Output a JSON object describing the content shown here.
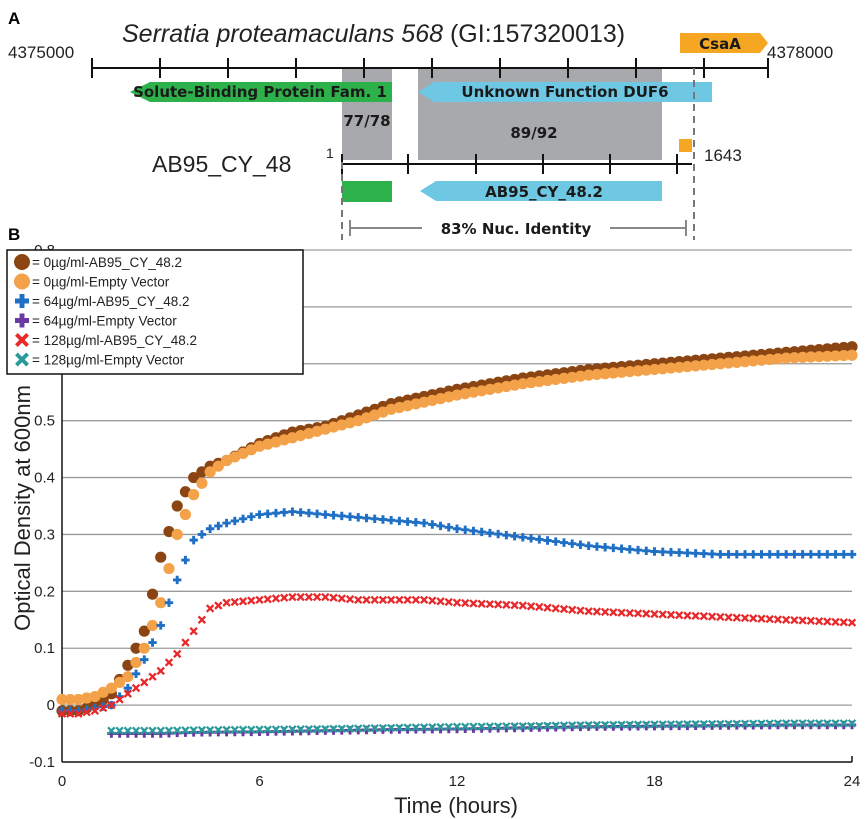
{
  "panel_a": {
    "letter": "A",
    "title_species": "Serratia proteamaculans 568",
    "title_gi": " (GI:157320013)",
    "ref_start": "4375000",
    "ref_end": "4378000",
    "csaA_label": "CsaA",
    "solute_label": "Solute-Binding Protein Fam. 1",
    "duf6_label": "Unknown Function DUF6",
    "identity_left": "77/78",
    "identity_right": "89/92",
    "clone_name": "AB95_CY_48",
    "clone_start": "1",
    "clone_end": "1643",
    "clone_gene_label": "AB95_CY_48.2",
    "nuc_identity": "83% Nuc. Identity",
    "colors": {
      "green": "#2db14a",
      "blue": "#6ec8e4",
      "orange": "#f5a623",
      "gray": "#a8a9ad"
    }
  },
  "panel_b": {
    "letter": "B"
  },
  "chart_data": {
    "type": "scatter",
    "xlabel": "Time (hours)",
    "ylabel": "Optical Density at 600nm",
    "xlim": [
      0,
      24
    ],
    "ylim": [
      -0.1,
      0.8
    ],
    "xticks": [
      0,
      6,
      12,
      18,
      24
    ],
    "yticks": [
      -0.1,
      0,
      0.1,
      0.2,
      0.3,
      0.4,
      0.5,
      0.6,
      0.7,
      0.8
    ],
    "ytick_labels": [
      "-0.1",
      "0",
      "0.1",
      "0.2",
      "0.3",
      "0.4",
      "0.5",
      "0.6",
      "0.7",
      "0.8"
    ],
    "grid": "horizontal",
    "legend_position": "top-left",
    "series": [
      {
        "name": "= 0µg/ml-AB95_CY_48.2",
        "marker": "circle",
        "color": "#8b4513",
        "x": [
          0,
          0.5,
          1,
          1.5,
          2,
          2.5,
          3,
          3.5,
          4,
          4.5,
          5,
          6,
          7,
          8,
          9,
          10,
          12,
          14,
          16,
          18,
          20,
          22,
          24
        ],
        "y": [
          -0.01,
          -0.01,
          0.0,
          0.02,
          0.07,
          0.13,
          0.26,
          0.35,
          0.4,
          0.42,
          0.43,
          0.46,
          0.48,
          0.49,
          0.51,
          0.53,
          0.555,
          0.575,
          0.59,
          0.6,
          0.61,
          0.62,
          0.63
        ]
      },
      {
        "name": "= 0µg/ml-Empty Vector",
        "marker": "circle",
        "color": "#f4a24a",
        "x": [
          0,
          0.5,
          1,
          1.5,
          2,
          2.5,
          3,
          3.5,
          4,
          4.5,
          5,
          6,
          7,
          8,
          9,
          10,
          12,
          14,
          16,
          18,
          20,
          22,
          24
        ],
        "y": [
          0.01,
          0.01,
          0.015,
          0.03,
          0.05,
          0.1,
          0.18,
          0.3,
          0.37,
          0.41,
          0.43,
          0.455,
          0.47,
          0.485,
          0.5,
          0.52,
          0.545,
          0.565,
          0.58,
          0.59,
          0.6,
          0.61,
          0.615
        ]
      },
      {
        "name": "= 64µg/ml-AB95_CY_48.2",
        "marker": "plus",
        "color": "#1f6fc5",
        "x": [
          0,
          0.5,
          1,
          1.5,
          2,
          2.5,
          3,
          3.5,
          4,
          4.5,
          5,
          6,
          7,
          8,
          9,
          10,
          11,
          12,
          14,
          16,
          18,
          20,
          22,
          24
        ],
        "y": [
          -0.01,
          -0.01,
          -0.005,
          0.0,
          0.03,
          0.08,
          0.14,
          0.22,
          0.29,
          0.31,
          0.32,
          0.335,
          0.34,
          0.335,
          0.33,
          0.325,
          0.32,
          0.31,
          0.295,
          0.28,
          0.27,
          0.265,
          0.265,
          0.265
        ]
      },
      {
        "name": "= 64µg/ml-Empty Vector",
        "marker": "plus",
        "color": "#6a3aa2",
        "x": [
          1.5,
          2,
          3,
          4,
          6,
          8,
          10,
          12,
          14,
          16,
          18,
          20,
          22,
          24
        ],
        "y": [
          -0.05,
          -0.05,
          -0.05,
          -0.048,
          -0.047,
          -0.045,
          -0.043,
          -0.042,
          -0.04,
          -0.038,
          -0.037,
          -0.036,
          -0.035,
          -0.035
        ]
      },
      {
        "name": "= 128µg/ml-AB95_CY_48.2",
        "marker": "x",
        "color": "#e8282a",
        "x": [
          0,
          0.5,
          1,
          1.5,
          2,
          2.5,
          3,
          3.5,
          4,
          4.5,
          5,
          6,
          7,
          8,
          9,
          10,
          11,
          12,
          14,
          16,
          18,
          20,
          22,
          24
        ],
        "y": [
          -0.015,
          -0.015,
          -0.01,
          0.0,
          0.02,
          0.04,
          0.06,
          0.09,
          0.13,
          0.17,
          0.18,
          0.185,
          0.19,
          0.19,
          0.185,
          0.185,
          0.185,
          0.18,
          0.175,
          0.165,
          0.16,
          0.155,
          0.15,
          0.145
        ]
      },
      {
        "name": "= 128µg/ml-Empty Vector",
        "marker": "x",
        "color": "#2a9a9a",
        "x": [
          1.5,
          2,
          3,
          4,
          6,
          8,
          10,
          12,
          14,
          16,
          18,
          20,
          22,
          24
        ],
        "y": [
          -0.045,
          -0.045,
          -0.045,
          -0.044,
          -0.043,
          -0.042,
          -0.04,
          -0.038,
          -0.037,
          -0.035,
          -0.034,
          -0.033,
          -0.032,
          -0.032
        ]
      }
    ]
  }
}
